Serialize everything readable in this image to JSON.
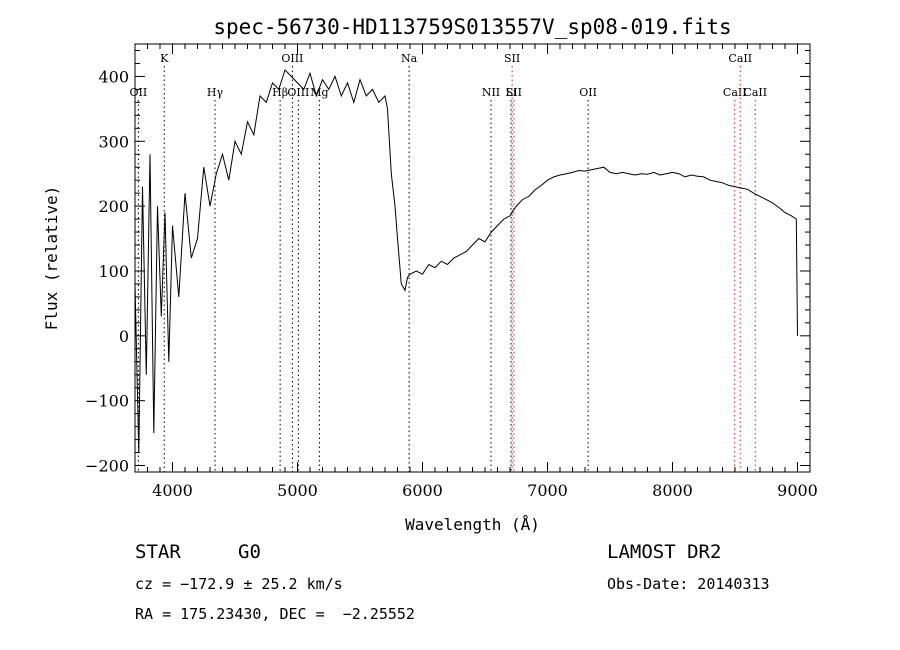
{
  "chart_data": {
    "type": "line",
    "title": "spec-56730-HD113759S013557V_sp08-019.fits",
    "xlabel": "Wavelength (Å)",
    "ylabel": "Flux (relative)",
    "xlim": [
      3700,
      9100
    ],
    "ylim": [
      -210,
      450
    ],
    "x_ticks": [
      4000,
      5000,
      6000,
      7000,
      8000,
      9000
    ],
    "x_tick_labels": [
      "4000",
      "5000",
      "6000",
      "7000",
      "8000",
      "9000"
    ],
    "y_ticks": [
      -200,
      -100,
      0,
      100,
      200,
      300,
      400
    ],
    "y_tick_labels": [
      "−200",
      "−100",
      "0",
      "100",
      "200",
      "300",
      "400"
    ],
    "grid": false,
    "series": [
      {
        "x": [
          3700,
          3730,
          3760,
          3790,
          3820,
          3850,
          3880,
          3910,
          3940,
          3970,
          4000,
          4050,
          4100,
          4150,
          4200,
          4250,
          4300,
          4350,
          4400,
          4450,
          4500,
          4550,
          4600,
          4650,
          4700,
          4750,
          4800,
          4850,
          4900,
          4950,
          5000,
          5050,
          5100,
          5150,
          5200,
          5250,
          5300,
          5350,
          5400,
          5450,
          5500,
          5550,
          5600,
          5650,
          5700,
          5720,
          5750,
          5780,
          5800,
          5830,
          5860,
          5880,
          5900,
          5950,
          6000,
          6050,
          6100,
          6150,
          6200,
          6250,
          6300,
          6350,
          6400,
          6450,
          6500,
          6550,
          6600,
          6650,
          6700,
          6750,
          6800,
          6850,
          6900,
          6950,
          7000,
          7050,
          7100,
          7150,
          7200,
          7250,
          7300,
          7350,
          7400,
          7450,
          7500,
          7550,
          7600,
          7650,
          7700,
          7750,
          7800,
          7850,
          7900,
          7950,
          8000,
          8050,
          8100,
          8150,
          8200,
          8250,
          8300,
          8350,
          8400,
          8450,
          8500,
          8550,
          8600,
          8650,
          8700,
          8750,
          8800,
          8850,
          8900,
          8950,
          8990,
          9000
        ],
        "y": [
          80,
          -180,
          230,
          -60,
          280,
          -150,
          200,
          30,
          190,
          -40,
          170,
          60,
          220,
          120,
          150,
          260,
          200,
          250,
          280,
          240,
          300,
          280,
          330,
          310,
          370,
          360,
          390,
          380,
          410,
          400,
          390,
          380,
          405,
          370,
          395,
          380,
          400,
          370,
          390,
          360,
          395,
          370,
          380,
          360,
          370,
          350,
          250,
          200,
          150,
          80,
          70,
          90,
          95,
          100,
          95,
          110,
          105,
          115,
          110,
          120,
          125,
          130,
          140,
          150,
          145,
          160,
          170,
          180,
          185,
          200,
          210,
          215,
          225,
          232,
          240,
          245,
          248,
          250,
          252,
          255,
          254,
          256,
          258,
          260,
          252,
          250,
          252,
          250,
          248,
          250,
          249,
          252,
          248,
          250,
          252,
          250,
          245,
          248,
          246,
          245,
          240,
          238,
          236,
          232,
          230,
          228,
          226,
          220,
          215,
          210,
          205,
          198,
          190,
          185,
          180,
          0
        ]
      }
    ],
    "line_markers": [
      {
        "label": "OII",
        "x": 3727,
        "row": 2
      },
      {
        "label": "K",
        "x": 3934,
        "row": 1
      },
      {
        "label": "Hγ",
        "x": 4340,
        "row": 2
      },
      {
        "label": "Hβ",
        "x": 4861,
        "row": 2
      },
      {
        "label": "OIII",
        "x": 4959,
        "row": 1
      },
      {
        "label": "OIII",
        "x": 5007,
        "row": 2
      },
      {
        "label": "Mg",
        "x": 5175,
        "row": 2
      },
      {
        "label": "Na",
        "x": 5893,
        "row": 1
      },
      {
        "label": "NII",
        "x": 6548,
        "row": 3
      },
      {
        "label": "SII",
        "x": 6717,
        "row": 1
      },
      {
        "label": "Li",
        "x": 6708,
        "row": 2
      },
      {
        "label": "SII",
        "x": 6731,
        "row": 3
      },
      {
        "label": "OII",
        "x": 7325,
        "row": 2
      },
      {
        "label": "CaII",
        "x": 8498,
        "row": 2
      },
      {
        "label": "CaII",
        "x": 8542,
        "row": 1
      },
      {
        "label": "CaII",
        "x": 8662,
        "row": 3
      }
    ]
  },
  "info": {
    "object_type": "STAR",
    "subclass": "G0",
    "survey": "LAMOST DR2",
    "cz": "cz = −172.9 ± 25.2 km/s",
    "obs_date": "Obs-Date: 20140313",
    "coords": "RA = 175.23430, DEC =  −2.25552"
  },
  "colors": {
    "line": "#000000",
    "marker_black": "#000000",
    "marker_red": "#d32020"
  }
}
